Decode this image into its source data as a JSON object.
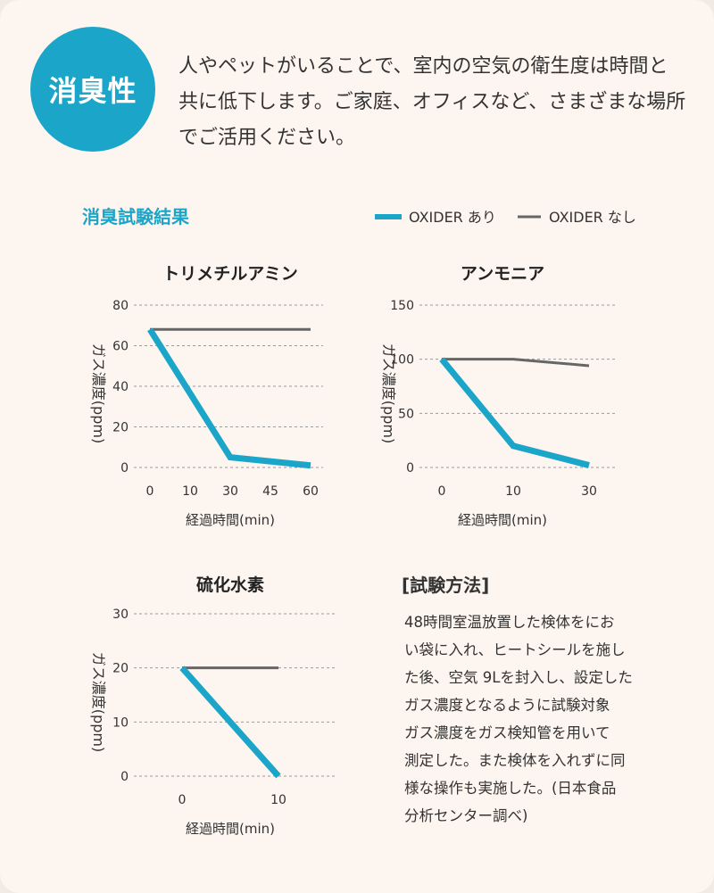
{
  "badge": "消臭性",
  "intro": "人やペットがいることで、室内の空気の衛生度は時間と共に低下します。ご家庭、オフィスなど、さまざまな場所でご活用ください。",
  "section_title": "消臭試験結果",
  "colors": {
    "with": "#1ba6c9",
    "without": "#666666",
    "accent": "#1ba6c9"
  },
  "legend": {
    "with": "OXIDER あり",
    "without": "OXIDER なし"
  },
  "chart_data": [
    {
      "type": "line",
      "title": "トリメチルアミン",
      "ylabel": "ガス濃度(ppm)",
      "xlabel": "経過時間(min)",
      "categories": [
        "0",
        "10",
        "30",
        "45",
        "60"
      ],
      "ylim": [
        0,
        80
      ],
      "yticks": [
        0,
        20,
        40,
        60,
        80
      ],
      "grid": true,
      "series": [
        {
          "name": "OXIDER あり",
          "points": [
            [
              "0",
              68
            ],
            [
              "30",
              5
            ],
            [
              "60",
              1
            ]
          ]
        },
        {
          "name": "OXIDER なし",
          "points": [
            [
              "0",
              68
            ],
            [
              "60",
              68
            ]
          ]
        }
      ]
    },
    {
      "type": "line",
      "title": "アンモニア",
      "ylabel": "ガス濃度(ppm)",
      "xlabel": "経過時間(min)",
      "categories": [
        "0",
        "10",
        "30"
      ],
      "ylim": [
        0,
        150
      ],
      "yticks": [
        0,
        50,
        100,
        150
      ],
      "grid": true,
      "series": [
        {
          "name": "OXIDER あり",
          "points": [
            [
              "0",
              100
            ],
            [
              "10",
              20
            ],
            [
              "30",
              2
            ]
          ]
        },
        {
          "name": "OXIDER なし",
          "points": [
            [
              "0",
              100
            ],
            [
              "10",
              100
            ],
            [
              "30",
              94
            ]
          ]
        }
      ]
    },
    {
      "type": "line",
      "title": "硫化水素",
      "ylabel": "ガス濃度(ppm)",
      "xlabel": "経過時間(min)",
      "categories": [
        "0",
        "10"
      ],
      "ylim": [
        0,
        30
      ],
      "yticks": [
        0,
        10,
        20,
        30
      ],
      "grid": true,
      "series": [
        {
          "name": "OXIDER あり",
          "points": [
            [
              "0",
              20
            ],
            [
              "10",
              0
            ]
          ]
        },
        {
          "name": "OXIDER なし",
          "points": [
            [
              "0",
              20
            ],
            [
              "10",
              20
            ]
          ]
        }
      ]
    }
  ],
  "method": {
    "title": "[試験方法]",
    "lines": [
      "48時間室温放置した検体をにお",
      "い袋に入れ、ヒートシールを施し",
      "た後、空気 9Lを封入し、設定した",
      "ガス濃度となるように試験対象",
      "ガス濃度をガス検知管を用いて",
      "測定した。また検体を入れずに同",
      "様な操作も実施した。(日本食品",
      "分析センター調べ)"
    ]
  }
}
